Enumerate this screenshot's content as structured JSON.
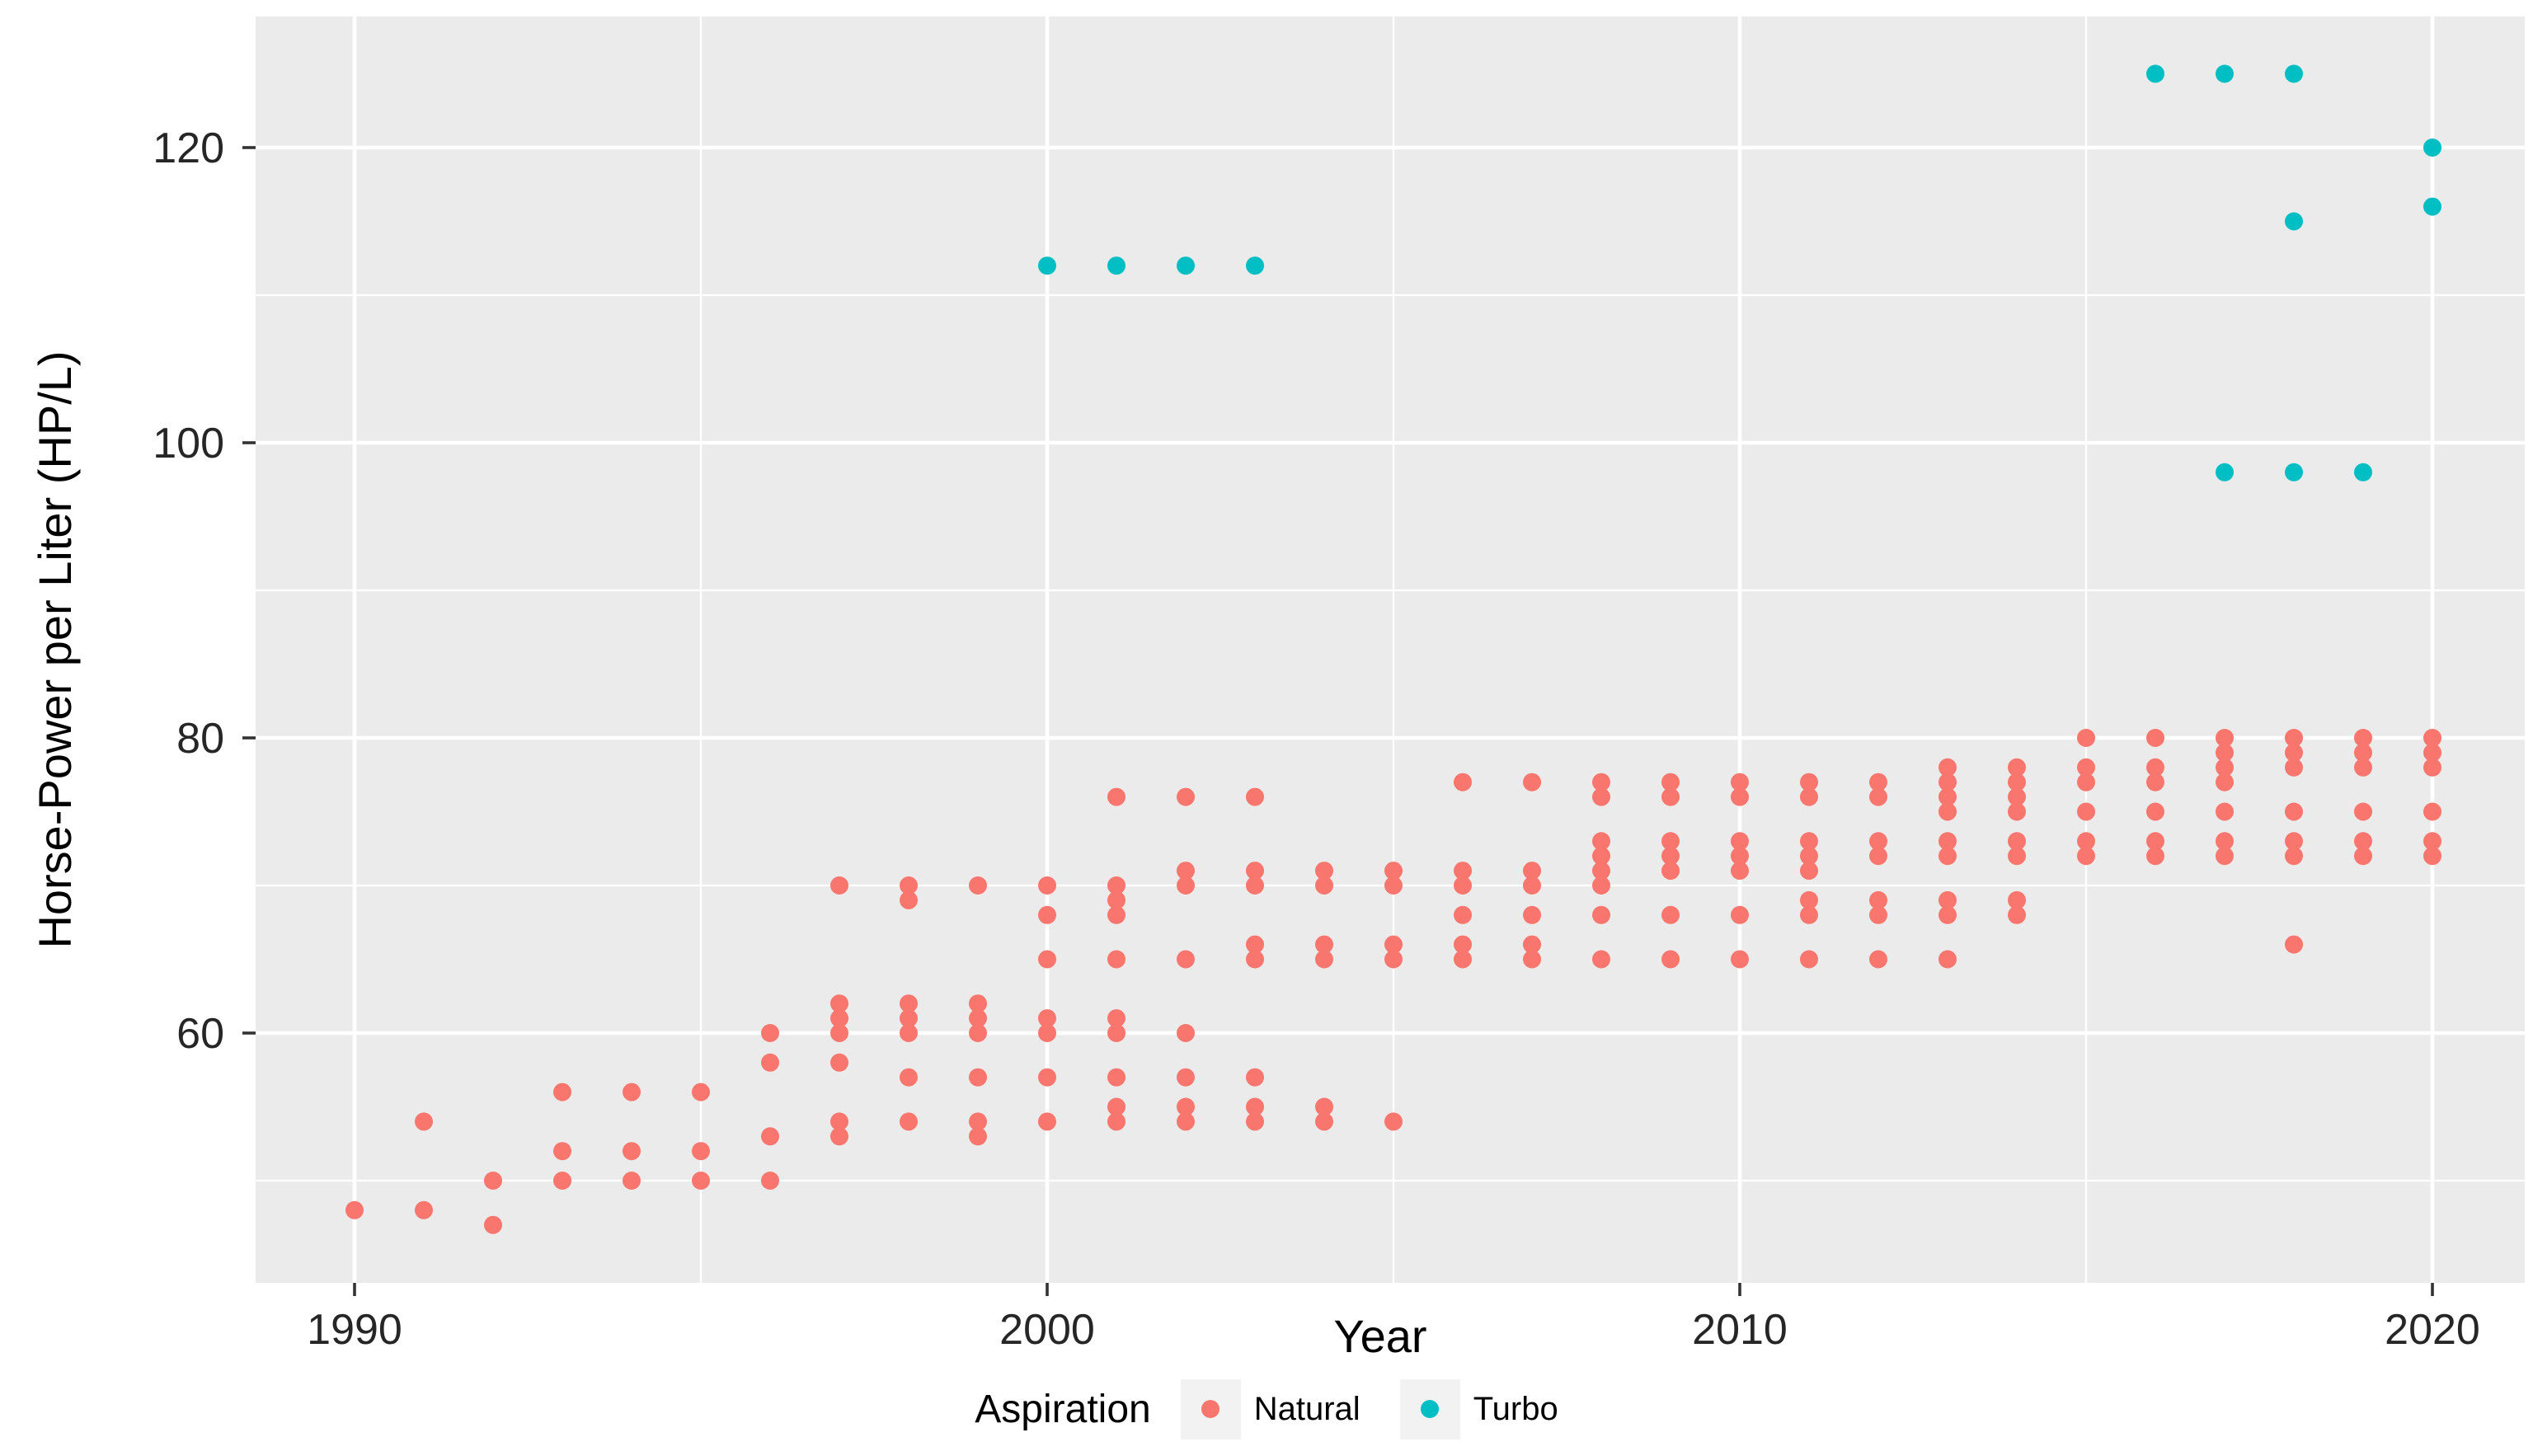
{
  "chart_data": {
    "type": "scatter",
    "title": "",
    "xlabel": "Year",
    "ylabel": "Horse-Power per Liter (HP/L)",
    "xlim": [
      1988.6,
      2021.3
    ],
    "ylim": [
      43.0,
      128.9
    ],
    "grid": true,
    "x_ticks": [
      {
        "label": "1990",
        "value": 1990
      },
      {
        "label": "2000",
        "value": 2000
      },
      {
        "label": "2010",
        "value": 2010
      },
      {
        "label": "2020",
        "value": 2020
      }
    ],
    "y_ticks": [
      {
        "label": "60",
        "value": 60
      },
      {
        "label": "80",
        "value": 80
      },
      {
        "label": "100",
        "value": 100
      },
      {
        "label": "120",
        "value": 120
      }
    ],
    "x_minor_gridlines": [
      1995,
      2005,
      2015
    ],
    "y_minor_gridlines": [
      50,
      70,
      90,
      110
    ],
    "legend": {
      "title": "Aspiration",
      "position": "bottom",
      "entries": [
        {
          "label": "Natural",
          "color": "#F8766D"
        },
        {
          "label": "Turbo",
          "color": "#00BFC4"
        }
      ]
    },
    "series": [
      {
        "name": "Natural",
        "color": "#F8766D",
        "points": [
          [
            1990,
            48
          ],
          [
            1991,
            54
          ],
          [
            1991,
            48
          ],
          [
            1992,
            50
          ],
          [
            1992,
            47
          ],
          [
            1993,
            56
          ],
          [
            1993,
            52
          ],
          [
            1993,
            50
          ],
          [
            1994,
            56
          ],
          [
            1994,
            52
          ],
          [
            1994,
            50
          ],
          [
            1995,
            56
          ],
          [
            1995,
            52
          ],
          [
            1995,
            50
          ],
          [
            1996,
            60
          ],
          [
            1996,
            58
          ],
          [
            1996,
            53
          ],
          [
            1996,
            50
          ],
          [
            1997,
            70
          ],
          [
            1997,
            62
          ],
          [
            1997,
            61
          ],
          [
            1997,
            60
          ],
          [
            1997,
            58
          ],
          [
            1997,
            54
          ],
          [
            1997,
            53
          ],
          [
            1998,
            70
          ],
          [
            1998,
            69
          ],
          [
            1998,
            62
          ],
          [
            1998,
            61
          ],
          [
            1998,
            60
          ],
          [
            1998,
            57
          ],
          [
            1998,
            54
          ],
          [
            1999,
            70
          ],
          [
            1999,
            62
          ],
          [
            1999,
            61
          ],
          [
            1999,
            60
          ],
          [
            1999,
            57
          ],
          [
            1999,
            54
          ],
          [
            1999,
            53
          ],
          [
            2000,
            70
          ],
          [
            2000,
            68
          ],
          [
            2000,
            65
          ],
          [
            2000,
            61
          ],
          [
            2000,
            60
          ],
          [
            2000,
            57
          ],
          [
            2000,
            54
          ],
          [
            2001,
            76
          ],
          [
            2001,
            70
          ],
          [
            2001,
            69
          ],
          [
            2001,
            68
          ],
          [
            2001,
            65
          ],
          [
            2001,
            61
          ],
          [
            2001,
            60
          ],
          [
            2001,
            57
          ],
          [
            2001,
            55
          ],
          [
            2001,
            54
          ],
          [
            2002,
            76
          ],
          [
            2002,
            71
          ],
          [
            2002,
            70
          ],
          [
            2002,
            65
          ],
          [
            2002,
            60
          ],
          [
            2002,
            57
          ],
          [
            2002,
            55
          ],
          [
            2002,
            54
          ],
          [
            2003,
            76
          ],
          [
            2003,
            71
          ],
          [
            2003,
            70
          ],
          [
            2003,
            66
          ],
          [
            2003,
            65
          ],
          [
            2003,
            57
          ],
          [
            2003,
            55
          ],
          [
            2003,
            54
          ],
          [
            2004,
            71
          ],
          [
            2004,
            70
          ],
          [
            2004,
            66
          ],
          [
            2004,
            65
          ],
          [
            2004,
            55
          ],
          [
            2004,
            54
          ],
          [
            2005,
            71
          ],
          [
            2005,
            70
          ],
          [
            2005,
            66
          ],
          [
            2005,
            65
          ],
          [
            2005,
            54
          ],
          [
            2006,
            77
          ],
          [
            2006,
            71
          ],
          [
            2006,
            70
          ],
          [
            2006,
            68
          ],
          [
            2006,
            66
          ],
          [
            2006,
            65
          ],
          [
            2007,
            77
          ],
          [
            2007,
            71
          ],
          [
            2007,
            70
          ],
          [
            2007,
            68
          ],
          [
            2007,
            66
          ],
          [
            2007,
            65
          ],
          [
            2008,
            77
          ],
          [
            2008,
            76
          ],
          [
            2008,
            73
          ],
          [
            2008,
            72
          ],
          [
            2008,
            71
          ],
          [
            2008,
            70
          ],
          [
            2008,
            68
          ],
          [
            2008,
            65
          ],
          [
            2009,
            77
          ],
          [
            2009,
            76
          ],
          [
            2009,
            73
          ],
          [
            2009,
            72
          ],
          [
            2009,
            71
          ],
          [
            2009,
            68
          ],
          [
            2009,
            65
          ],
          [
            2010,
            77
          ],
          [
            2010,
            76
          ],
          [
            2010,
            73
          ],
          [
            2010,
            72
          ],
          [
            2010,
            71
          ],
          [
            2010,
            68
          ],
          [
            2010,
            65
          ],
          [
            2011,
            77
          ],
          [
            2011,
            76
          ],
          [
            2011,
            73
          ],
          [
            2011,
            72
          ],
          [
            2011,
            71
          ],
          [
            2011,
            69
          ],
          [
            2011,
            68
          ],
          [
            2011,
            65
          ],
          [
            2012,
            77
          ],
          [
            2012,
            76
          ],
          [
            2012,
            73
          ],
          [
            2012,
            72
          ],
          [
            2012,
            69
          ],
          [
            2012,
            68
          ],
          [
            2012,
            65
          ],
          [
            2013,
            78
          ],
          [
            2013,
            77
          ],
          [
            2013,
            76
          ],
          [
            2013,
            75
          ],
          [
            2013,
            73
          ],
          [
            2013,
            72
          ],
          [
            2013,
            69
          ],
          [
            2013,
            68
          ],
          [
            2013,
            65
          ],
          [
            2014,
            78
          ],
          [
            2014,
            77
          ],
          [
            2014,
            76
          ],
          [
            2014,
            75
          ],
          [
            2014,
            73
          ],
          [
            2014,
            72
          ],
          [
            2014,
            69
          ],
          [
            2014,
            68
          ],
          [
            2015,
            80
          ],
          [
            2015,
            78
          ],
          [
            2015,
            77
          ],
          [
            2015,
            75
          ],
          [
            2015,
            73
          ],
          [
            2015,
            72
          ],
          [
            2016,
            80
          ],
          [
            2016,
            78
          ],
          [
            2016,
            77
          ],
          [
            2016,
            75
          ],
          [
            2016,
            73
          ],
          [
            2016,
            72
          ],
          [
            2017,
            80
          ],
          [
            2017,
            79
          ],
          [
            2017,
            78
          ],
          [
            2017,
            77
          ],
          [
            2017,
            75
          ],
          [
            2017,
            73
          ],
          [
            2017,
            72
          ],
          [
            2018,
            80
          ],
          [
            2018,
            79
          ],
          [
            2018,
            78
          ],
          [
            2018,
            75
          ],
          [
            2018,
            73
          ],
          [
            2018,
            72
          ],
          [
            2018,
            66
          ],
          [
            2019,
            80
          ],
          [
            2019,
            79
          ],
          [
            2019,
            78
          ],
          [
            2019,
            75
          ],
          [
            2019,
            73
          ],
          [
            2019,
            72
          ],
          [
            2020,
            80
          ],
          [
            2020,
            79
          ],
          [
            2020,
            78
          ],
          [
            2020,
            75
          ],
          [
            2020,
            73
          ],
          [
            2020,
            72
          ]
        ]
      },
      {
        "name": "Turbo",
        "color": "#00BFC4",
        "points": [
          [
            2000,
            112
          ],
          [
            2001,
            112
          ],
          [
            2002,
            112
          ],
          [
            2003,
            112
          ],
          [
            2016,
            125
          ],
          [
            2017,
            125
          ],
          [
            2018,
            125
          ],
          [
            2018,
            115
          ],
          [
            2017,
            98
          ],
          [
            2018,
            98
          ],
          [
            2019,
            98
          ],
          [
            2020,
            120
          ],
          [
            2020,
            116
          ]
        ]
      }
    ]
  },
  "colors": {
    "panel_background": "#EBEBEB",
    "gridline": "#FFFFFF",
    "tick_mark": "#333333",
    "axis_tick_text": "#262626",
    "axis_title_text": "#000000",
    "legend_key_background": "#F2F2F2",
    "natural": "#F8766D",
    "turbo": "#00BFC4"
  }
}
